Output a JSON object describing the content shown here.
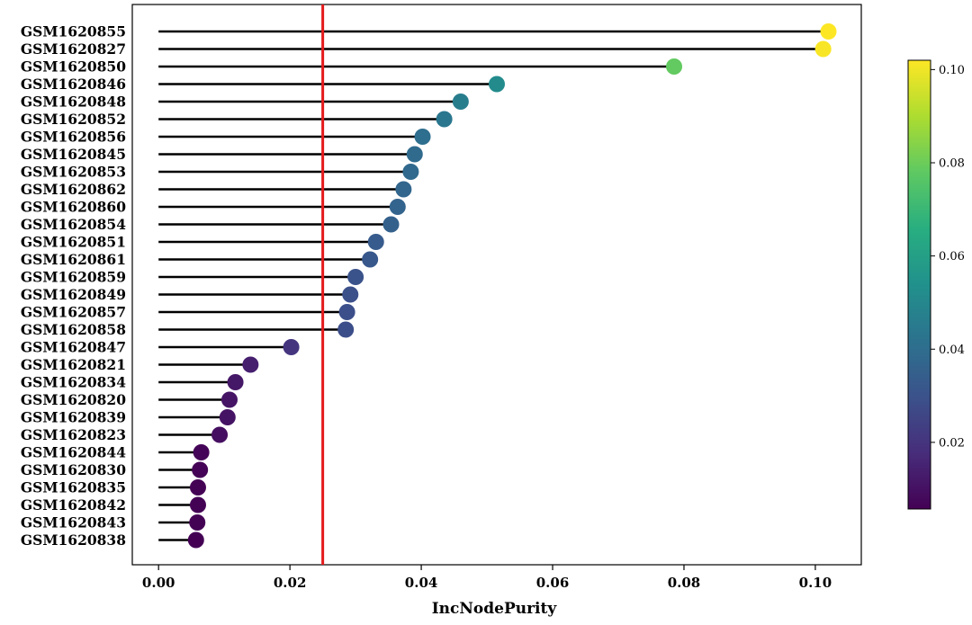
{
  "chart_data": {
    "type": "lollipop",
    "xlabel": "IncNodePurity",
    "xlim": [
      -0.004,
      0.107
    ],
    "xticks": [
      0.0,
      0.02,
      0.04,
      0.06,
      0.08,
      0.1
    ],
    "xtick_labels": [
      "0.00",
      "0.02",
      "0.04",
      "0.06",
      "0.08",
      "0.10"
    ],
    "threshold": 0.025,
    "threshold_color": "#e41a1c",
    "samples": [
      {
        "label": "GSM1620855",
        "value": 0.102
      },
      {
        "label": "GSM1620827",
        "value": 0.1012
      },
      {
        "label": "GSM1620850",
        "value": 0.0785
      },
      {
        "label": "GSM1620846",
        "value": 0.0515
      },
      {
        "label": "GSM1620848",
        "value": 0.046
      },
      {
        "label": "GSM1620852",
        "value": 0.0435
      },
      {
        "label": "GSM1620856",
        "value": 0.0402
      },
      {
        "label": "GSM1620845",
        "value": 0.039
      },
      {
        "label": "GSM1620853",
        "value": 0.0384
      },
      {
        "label": "GSM1620862",
        "value": 0.0373
      },
      {
        "label": "GSM1620860",
        "value": 0.0364
      },
      {
        "label": "GSM1620854",
        "value": 0.0354
      },
      {
        "label": "GSM1620851",
        "value": 0.0331
      },
      {
        "label": "GSM1620861",
        "value": 0.0322
      },
      {
        "label": "GSM1620859",
        "value": 0.03
      },
      {
        "label": "GSM1620849",
        "value": 0.0292
      },
      {
        "label": "GSM1620857",
        "value": 0.0287
      },
      {
        "label": "GSM1620858",
        "value": 0.0285
      },
      {
        "label": "GSM1620847",
        "value": 0.0202
      },
      {
        "label": "GSM1620821",
        "value": 0.014
      },
      {
        "label": "GSM1620834",
        "value": 0.0117
      },
      {
        "label": "GSM1620820",
        "value": 0.0108
      },
      {
        "label": "GSM1620839",
        "value": 0.0105
      },
      {
        "label": "GSM1620823",
        "value": 0.0093
      },
      {
        "label": "GSM1620844",
        "value": 0.0065
      },
      {
        "label": "GSM1620830",
        "value": 0.0063
      },
      {
        "label": "GSM1620835",
        "value": 0.006
      },
      {
        "label": "GSM1620842",
        "value": 0.006
      },
      {
        "label": "GSM1620843",
        "value": 0.0059
      },
      {
        "label": "GSM1620838",
        "value": 0.0057
      }
    ],
    "colorbar": {
      "colormap": "viridis",
      "range": [
        0.0057,
        0.102
      ],
      "ticks": [
        0.02,
        0.04,
        0.06,
        0.08,
        0.1
      ],
      "tick_labels": [
        "0.02",
        "0.04",
        "0.06",
        "0.08",
        "0.10"
      ]
    }
  }
}
